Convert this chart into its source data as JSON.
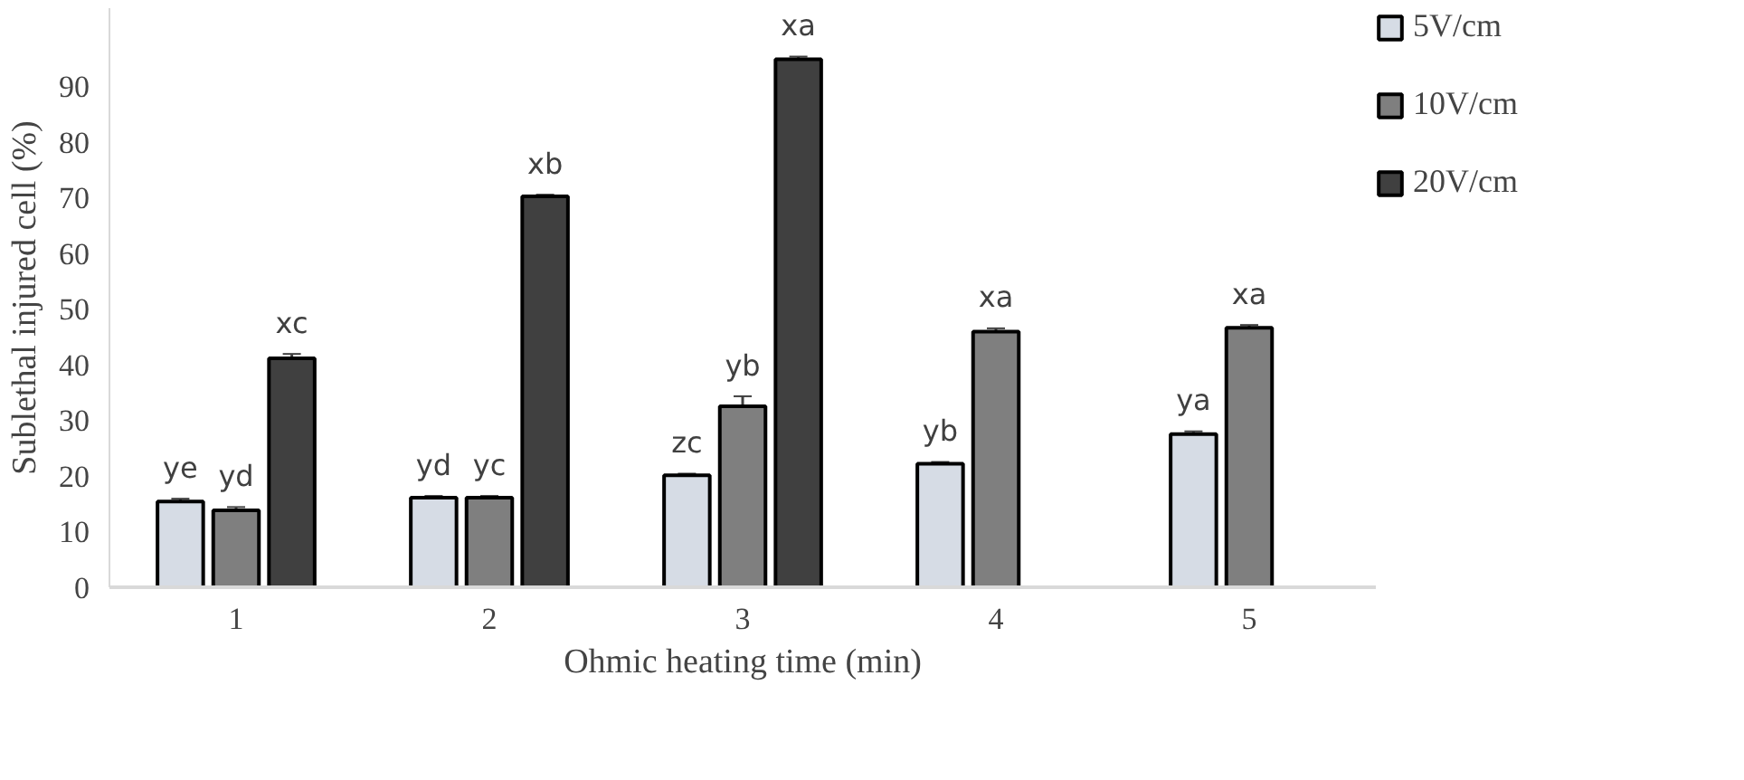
{
  "chart_data": {
    "type": "bar",
    "xlabel": "Ohmic heating time (min)",
    "ylabel": "Sublethal injured cell (%)",
    "categories": [
      "1",
      "2",
      "3",
      "4",
      "5"
    ],
    "series": [
      {
        "name": "5V/cm",
        "color": "#d6dce5",
        "values": [
          15.4,
          16.1,
          20.1,
          22.2,
          27.5
        ],
        "errors": [
          0.5,
          0.3,
          0.3,
          0.3,
          0.5
        ],
        "value_labels": [
          "ye",
          "yd",
          "zc",
          "yb",
          "ya"
        ]
      },
      {
        "name": "10V/cm",
        "color": "#7f7f7f",
        "values": [
          13.8,
          16.1,
          32.5,
          45.9,
          46.6
        ],
        "errors": [
          0.6,
          0.3,
          1.8,
          0.6,
          0.5
        ],
        "value_labels": [
          "yd",
          "yc",
          "yb",
          "xa",
          "xa"
        ]
      },
      {
        "name": "20V/cm",
        "color": "#404040",
        "values": [
          41.1,
          70.2,
          94.8,
          null,
          null
        ],
        "errors": [
          0.8,
          0.3,
          0.5,
          null,
          null
        ],
        "value_labels": [
          "xc",
          "xb",
          "xa",
          null,
          null
        ]
      }
    ],
    "ylim": [
      0,
      104
    ],
    "yticks": [
      0,
      10,
      20,
      30,
      40,
      50,
      60,
      70,
      80,
      90
    ],
    "grid": false,
    "legend": "top right"
  }
}
